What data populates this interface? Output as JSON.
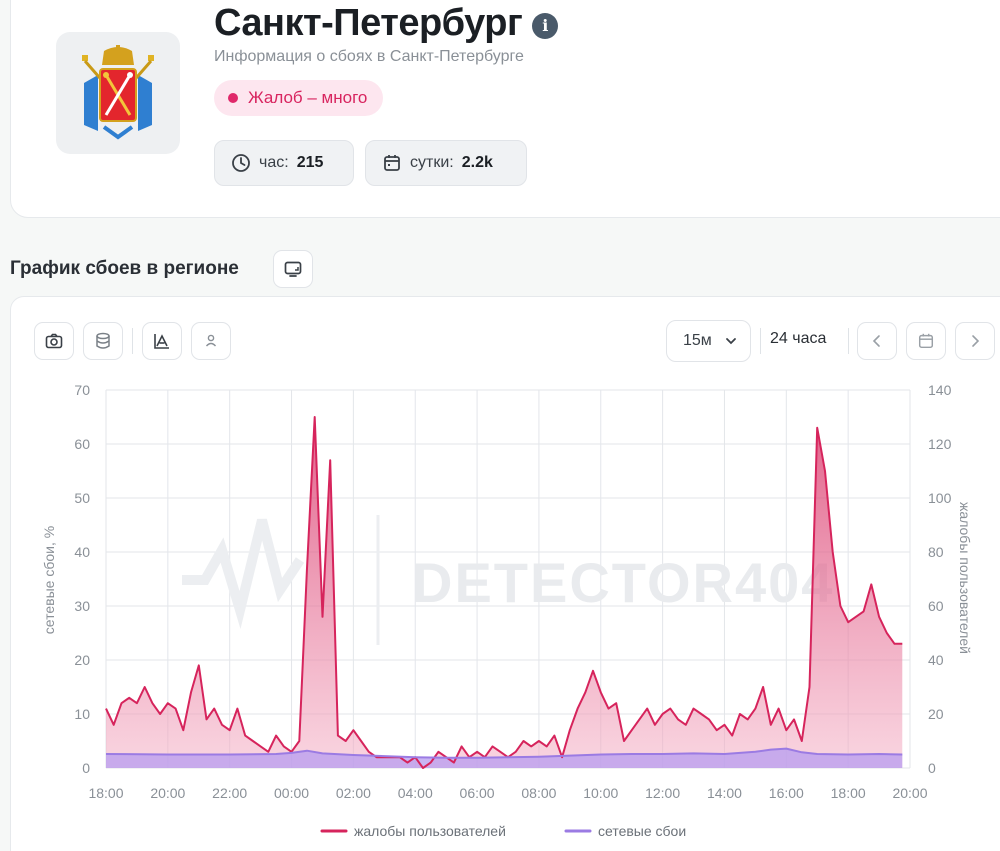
{
  "header": {
    "title": "Санкт-Петербург",
    "subtitle": "Информация о сбоях в Санкт-Петербурге",
    "badge": "Жалоб – много",
    "stats": {
      "hour_label": "час:",
      "hour_value": "215",
      "day_label": "сутки:",
      "day_value": "2.2k"
    }
  },
  "section": {
    "title": "График сбоев в регионе"
  },
  "toolbar": {
    "interval": "15м",
    "range": "24 часа"
  },
  "icons": {
    "info": "info-icon",
    "clock": "clock-icon",
    "calendar": "calendar-icon",
    "monitor": "monitor-icon",
    "camera": "camera-icon",
    "database": "database-icon",
    "chart": "chart-mode-icon",
    "user": "user-icon",
    "chevron-down": "chevron-down-icon",
    "chevron-left": "chevron-left-icon",
    "chevron-right": "chevron-right-icon"
  },
  "colors": {
    "accent": "#d8245f",
    "complaints_line": "#d6245c",
    "network_line": "#9b7be3"
  },
  "chart_data": {
    "type": "area",
    "watermark": "DETECTOR404",
    "ylabel_left": "сетевые сбои, %",
    "ylabel_right": "жалобы пользователей",
    "ylim_left": [
      0,
      70
    ],
    "ylim_right": [
      0,
      140
    ],
    "yticks_left": [
      0,
      10,
      20,
      30,
      40,
      50,
      60,
      70
    ],
    "yticks_right": [
      0,
      20,
      40,
      60,
      80,
      100,
      120,
      140
    ],
    "xlim": [
      18,
      44
    ],
    "xticks": [
      {
        "v": 18,
        "label": "18:00"
      },
      {
        "v": 20,
        "label": "20:00"
      },
      {
        "v": 22,
        "label": "22:00"
      },
      {
        "v": 24,
        "label": "00:00"
      },
      {
        "v": 26,
        "label": "02:00"
      },
      {
        "v": 28,
        "label": "04:00"
      },
      {
        "v": 30,
        "label": "06:00"
      },
      {
        "v": 32,
        "label": "08:00"
      },
      {
        "v": 34,
        "label": "10:00"
      },
      {
        "v": 36,
        "label": "12:00"
      },
      {
        "v": 38,
        "label": "14:00"
      },
      {
        "v": 40,
        "label": "16:00"
      },
      {
        "v": 42,
        "label": "18:00"
      },
      {
        "v": 44,
        "label": "20:00"
      }
    ],
    "grid": true,
    "legend_position": "bottom",
    "series": [
      {
        "name": "жалобы пользователей",
        "axis": "right",
        "x": [
          18.0,
          18.25,
          18.5,
          18.75,
          19.0,
          19.25,
          19.5,
          19.75,
          20.0,
          20.25,
          20.5,
          20.75,
          21.0,
          21.25,
          21.5,
          21.75,
          22.0,
          22.25,
          22.5,
          22.75,
          23.0,
          23.25,
          23.5,
          23.75,
          24.0,
          24.25,
          24.5,
          24.75,
          25.0,
          25.25,
          25.5,
          25.75,
          26.0,
          26.25,
          26.5,
          26.75,
          27.0,
          27.25,
          27.5,
          27.75,
          28.0,
          28.25,
          28.5,
          28.75,
          29.0,
          29.25,
          29.5,
          29.75,
          30.0,
          30.25,
          30.5,
          30.75,
          31.0,
          31.25,
          31.5,
          31.75,
          32.0,
          32.25,
          32.5,
          32.75,
          33.0,
          33.25,
          33.5,
          33.75,
          34.0,
          34.25,
          34.5,
          34.75,
          35.0,
          35.25,
          35.5,
          35.75,
          36.0,
          36.25,
          36.5,
          36.75,
          37.0,
          37.25,
          37.5,
          37.75,
          38.0,
          38.25,
          38.5,
          38.75,
          39.0,
          39.25,
          39.5,
          39.75,
          40.0,
          40.25,
          40.5,
          40.75,
          41.0,
          41.25,
          41.5,
          41.75,
          42.0,
          42.25,
          42.5,
          42.75,
          43.0,
          43.25,
          43.5,
          43.75
        ],
        "values": [
          22,
          16,
          24,
          26,
          24,
          30,
          24,
          20,
          24,
          22,
          14,
          28,
          38,
          18,
          22,
          16,
          14,
          22,
          12,
          10,
          8,
          6,
          12,
          8,
          6,
          10,
          74,
          130,
          56,
          114,
          12,
          10,
          14,
          10,
          6,
          4,
          4,
          4,
          4,
          2,
          4,
          0,
          2,
          6,
          4,
          2,
          8,
          4,
          6,
          4,
          8,
          6,
          4,
          6,
          10,
          8,
          10,
          8,
          12,
          4,
          14,
          22,
          28,
          36,
          28,
          22,
          24,
          10,
          14,
          18,
          22,
          16,
          20,
          22,
          18,
          16,
          22,
          20,
          18,
          14,
          16,
          12,
          20,
          18,
          22,
          30,
          16,
          22,
          14,
          18,
          10,
          30,
          126,
          110,
          80,
          60,
          54,
          56,
          58,
          68,
          56,
          50,
          46,
          46
        ]
      },
      {
        "name": "сетевые сбои",
        "axis": "left",
        "x": [
          18.0,
          20.0,
          22.0,
          23.5,
          24.0,
          24.5,
          25.0,
          26.0,
          27.0,
          28.0,
          29.0,
          30.0,
          31.0,
          32.0,
          33.0,
          34.0,
          35.0,
          36.0,
          37.0,
          38.0,
          38.5,
          39.0,
          39.5,
          40.0,
          40.5,
          41.0,
          42.0,
          43.0,
          43.75
        ],
        "values": [
          2.6,
          2.5,
          2.5,
          2.6,
          2.8,
          3.2,
          2.7,
          2.4,
          2.2,
          2.0,
          1.9,
          1.9,
          2.0,
          2.1,
          2.3,
          2.5,
          2.6,
          2.6,
          2.7,
          2.6,
          2.8,
          3.0,
          3.4,
          3.6,
          2.9,
          2.6,
          2.5,
          2.6,
          2.5
        ]
      }
    ]
  }
}
